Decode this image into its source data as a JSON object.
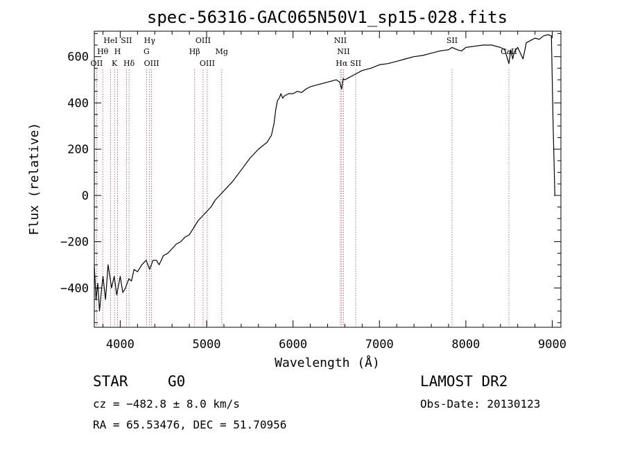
{
  "chart_data": {
    "type": "line",
    "title": "spec-56316-GAC065N50V1_sp15-028.fits",
    "xlabel": "Wavelength (Å)",
    "ylabel": "Flux (relative)",
    "xlim": [
      3700,
      9100
    ],
    "ylim": [
      -570,
      710
    ],
    "x_ticks": [
      4000,
      5000,
      6000,
      7000,
      8000,
      9000
    ],
    "y_ticks": [
      -400,
      -200,
      0,
      200,
      400,
      600
    ],
    "grid": false,
    "legend": "none",
    "line_color": "#000000",
    "marker_color": "#a05050",
    "series": [
      {
        "x": [
          3700,
          3720,
          3740,
          3760,
          3780,
          3800,
          3830,
          3860,
          3900,
          3930,
          3960,
          4000,
          4030,
          4060,
          4100,
          4130,
          4160,
          4200,
          4250,
          4300,
          4340,
          4380,
          4420,
          4450,
          4500,
          4550,
          4600,
          4650,
          4700,
          4750,
          4800,
          4850,
          4900,
          4950,
          5000,
          5050,
          5100,
          5150,
          5200,
          5300,
          5400,
          5500,
          5600,
          5700,
          5750,
          5780,
          5800,
          5820,
          5840,
          5860,
          5880,
          5900,
          5950,
          6000,
          6050,
          6100,
          6150,
          6200,
          6300,
          6400,
          6500,
          6540,
          6563,
          6580,
          6600,
          6650,
          6700,
          6800,
          6900,
          7000,
          7100,
          7200,
          7300,
          7400,
          7500,
          7600,
          7700,
          7800,
          7840,
          7900,
          7950,
          8000,
          8100,
          8200,
          8300,
          8400,
          8450,
          8498,
          8520,
          8542,
          8560,
          8600,
          8662,
          8700,
          8750,
          8800,
          8850,
          8900,
          8950,
          8990,
          9010,
          9030
        ],
        "y": [
          -300,
          -450,
          -380,
          -500,
          -420,
          -350,
          -450,
          -300,
          -400,
          -350,
          -430,
          -350,
          -420,
          -400,
          -360,
          -370,
          -320,
          -330,
          -300,
          -280,
          -320,
          -280,
          -280,
          -300,
          -260,
          -250,
          -230,
          -210,
          -200,
          -180,
          -170,
          -140,
          -110,
          -90,
          -70,
          -50,
          -20,
          0,
          20,
          60,
          110,
          160,
          200,
          230,
          260,
          310,
          370,
          410,
          420,
          440,
          420,
          430,
          440,
          440,
          450,
          445,
          460,
          470,
          480,
          490,
          500,
          490,
          460,
          505,
          500,
          510,
          520,
          540,
          550,
          565,
          570,
          580,
          590,
          600,
          605,
          615,
          625,
          630,
          640,
          630,
          625,
          640,
          645,
          650,
          650,
          640,
          630,
          570,
          630,
          590,
          620,
          640,
          590,
          660,
          670,
          680,
          675,
          690,
          695,
          690,
          300,
          0
        ]
      }
    ],
    "lines": [
      {
        "x": 3727,
        "label": "OII",
        "row": 3
      },
      {
        "x": 3798,
        "label": "Hθ",
        "row": 2
      },
      {
        "x": 3889,
        "label": "HeI",
        "row": 1
      },
      {
        "x": 3934,
        "label": "K",
        "row": 3
      },
      {
        "x": 3969,
        "label": "H",
        "row": 2
      },
      {
        "x": 4072,
        "label": "SII",
        "row": 1
      },
      {
        "x": 4102,
        "label": "Hδ",
        "row": 3
      },
      {
        "x": 4305,
        "label": "G",
        "row": 2
      },
      {
        "x": 4340,
        "label": "Hγ",
        "row": 1
      },
      {
        "x": 4363,
        "label": "OIII",
        "row": 3
      },
      {
        "x": 4861,
        "label": "Hβ",
        "row": 2
      },
      {
        "x": 4959,
        "label": "OIII",
        "row": 1
      },
      {
        "x": 5007,
        "label": "OIII",
        "row": 3
      },
      {
        "x": 5175,
        "label": "Mg",
        "row": 2
      },
      {
        "x": 6548,
        "label": "NII",
        "row": 1
      },
      {
        "x": 6563,
        "label": "Hα",
        "row": 3
      },
      {
        "x": 6584,
        "label": "NII",
        "row": 2
      },
      {
        "x": 6725,
        "label": "SII",
        "row": 3
      },
      {
        "x": 7840,
        "label": "SII",
        "row": 1
      },
      {
        "x": 8498,
        "label": "CaII",
        "row": 2
      }
    ]
  },
  "info": {
    "object_class": "STAR",
    "subclass": "G0",
    "survey": "LAMOST DR2",
    "redshift": "cz = −482.8 ± 8.0 km/s",
    "obs_date": "Obs-Date: 20130123",
    "coords": "RA =  65.53476, DEC =  51.70956"
  }
}
